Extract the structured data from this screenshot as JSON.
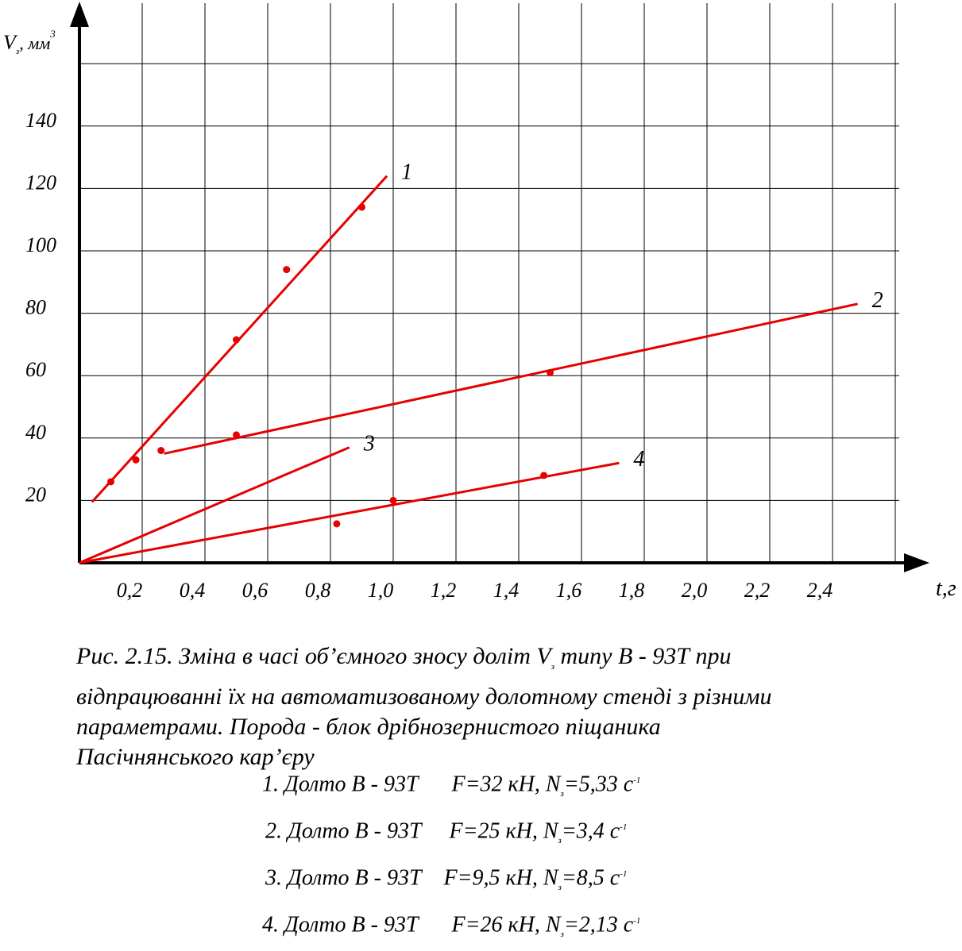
{
  "colors": {
    "series": "#e60000",
    "axis": "#000000",
    "grid": "#000000"
  },
  "chart_data": {
    "type": "line",
    "ylabel": "V",
    "ylabel_sub": "з",
    "ylabel_unit": ", мм",
    "ylabel_sup": "3",
    "xlabel": "t,г",
    "xlim": [
      0,
      2.6
    ],
    "ylim": [
      0,
      160
    ],
    "grid": true,
    "x_ticks": [
      "0,2",
      "0,4",
      "0,6",
      "0,8",
      "1,0",
      "1,2",
      "1,4",
      "1,6",
      "1,8",
      "2,0",
      "2,2",
      "2,4"
    ],
    "y_ticks": [
      "20",
      "40",
      "60",
      "80",
      "100",
      "120",
      "140"
    ],
    "series": [
      {
        "name": "1",
        "line": [
          [
            0.04,
            19.5
          ],
          [
            0.98,
            124
          ]
        ],
        "points": [
          [
            0.1,
            26
          ],
          [
            0.18,
            33
          ],
          [
            0.5,
            71.5
          ],
          [
            0.66,
            94
          ],
          [
            0.9,
            114
          ]
        ]
      },
      {
        "name": "2",
        "line": [
          [
            0.27,
            35
          ],
          [
            2.48,
            83
          ]
        ],
        "points": [
          [
            0.26,
            36
          ],
          [
            0.5,
            41
          ],
          [
            1.5,
            61
          ]
        ]
      },
      {
        "name": "3",
        "line": [
          [
            0.0,
            0.0
          ],
          [
            0.86,
            37
          ]
        ],
        "points": []
      },
      {
        "name": "4",
        "line": [
          [
            0.0,
            0.0
          ],
          [
            1.72,
            32
          ]
        ],
        "points": [
          [
            0.82,
            12.5
          ],
          [
            1.0,
            20
          ],
          [
            1.48,
            28
          ]
        ]
      }
    ]
  },
  "caption": {
    "line1_pre": "Рис. 2.15. Зміна в часі об’ємного зносу  доліт V",
    "line1_sub": "з",
    "line1_post": " типу В - 93Т  при",
    "line2": " відпрацюванні їх на автоматизованому долотному стенді з різними",
    "line3": " параметрами. Порода - блок дрібнозернистого піщаника",
    "line4": "Пасічнянського кар’єру"
  },
  "legend": [
    {
      "bit": "1. Долто В - 93Т",
      "params_pre": "      F=32 кН, N",
      "params_sub": "з",
      "params_post": "=5,33 с",
      "params_sup": "-1"
    },
    {
      "bit": "2. Долто В - 93Т",
      "params_pre": "     F=25 кН, N",
      "params_sub": "з",
      "params_post": "=3,4 с",
      "params_sup": "-1"
    },
    {
      "bit": "3. Долто В - 93Т",
      "params_pre": "    F=9,5 кН, N",
      "params_sub": "з",
      "params_post": "=8,5 с",
      "params_sup": "-1"
    },
    {
      "bit": "4. Долто В - 93Т",
      "params_pre": "      F=26 кН, N",
      "params_sub": "з",
      "params_post": "=2,13 с",
      "params_sup": "-1"
    }
  ]
}
